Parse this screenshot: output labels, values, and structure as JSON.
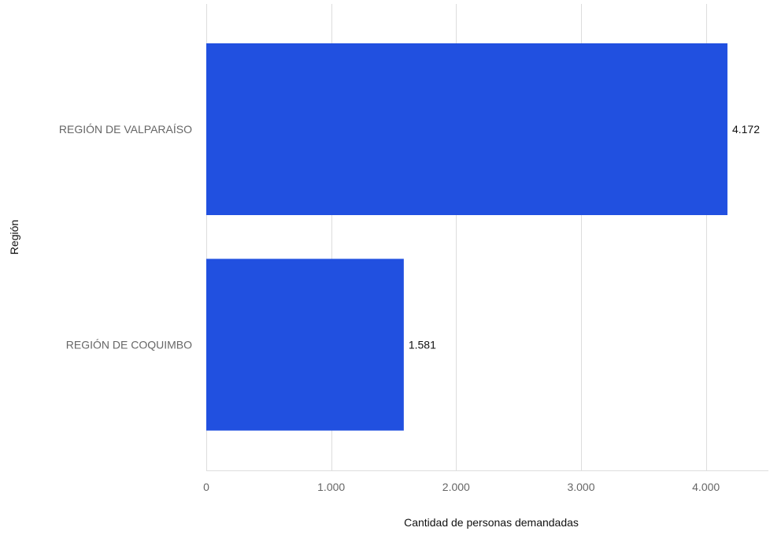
{
  "chart_data": {
    "type": "bar",
    "orientation": "horizontal",
    "categories": [
      "REGIÓN DE VALPARAÍSO",
      "REGIÓN DE COQUIMBO"
    ],
    "values": [
      4172,
      1581
    ],
    "value_labels": [
      "4.172",
      "1.581"
    ],
    "xlabel": "Cantidad de personas demandadas",
    "ylabel": "Región",
    "xlim": [
      0,
      4500
    ],
    "xticks": [
      0,
      1000,
      2000,
      3000,
      4000
    ],
    "xtick_labels": [
      "0",
      "1.000",
      "2.000",
      "3.000",
      "4.000"
    ],
    "grid": "vertical",
    "legend": "none",
    "bar_color": "#2150E0",
    "grid_color": "#DDDDDD"
  }
}
